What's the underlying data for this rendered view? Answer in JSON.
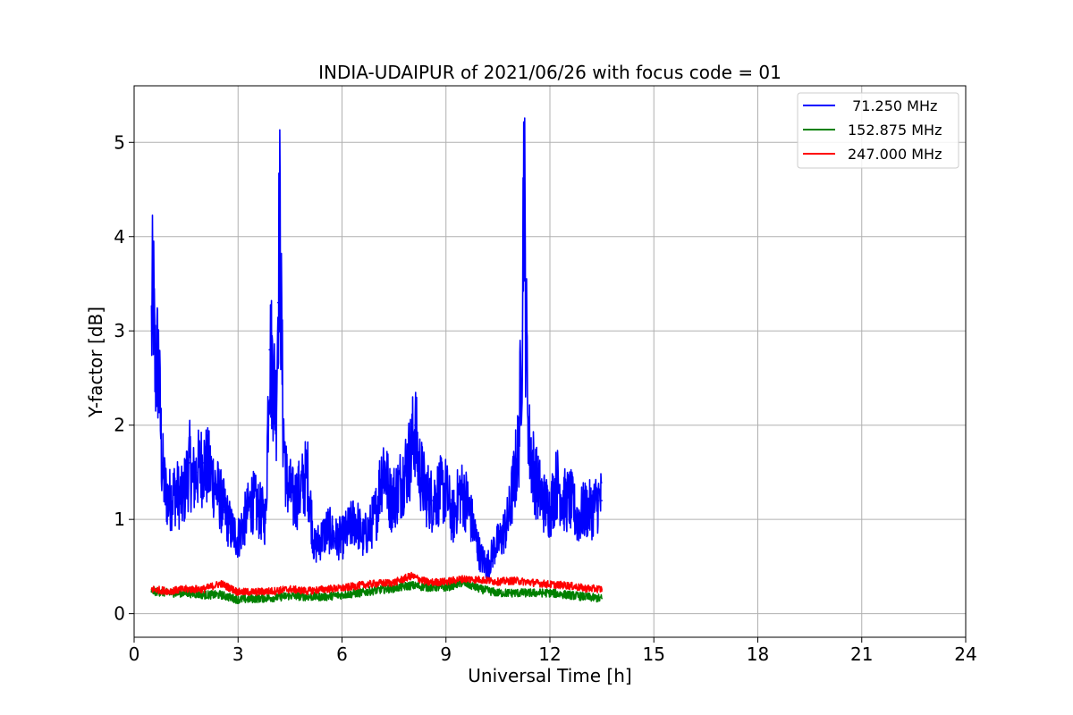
{
  "chart_data": {
    "type": "line",
    "title": "INDIA-UDAIPUR of 2021/06/26 with focus code = 01",
    "xlabel": "Universal Time [h]",
    "ylabel": "Y-factor [dB]",
    "xlim": [
      0,
      24
    ],
    "ylim": [
      -0.25,
      5.6
    ],
    "x_ticks": [
      0,
      3,
      6,
      9,
      12,
      15,
      18,
      21,
      24
    ],
    "x_tick_labels": [
      "0",
      "3",
      "6",
      "9",
      "12",
      "15",
      "18",
      "21",
      "24"
    ],
    "y_ticks": [
      0,
      1,
      2,
      3,
      4,
      5
    ],
    "y_tick_labels": [
      "0",
      "1",
      "2",
      "3",
      "4",
      "5"
    ],
    "grid": true,
    "legend_position": "top-right",
    "legend": [
      {
        "label": " 71.250 MHz",
        "color": "#0000ff"
      },
      {
        "label": "152.875 MHz",
        "color": "#008000"
      },
      {
        "label": "247.000 MHz",
        "color": "#ff0000"
      }
    ],
    "series": [
      {
        "name": " 71.250 MHz",
        "color": "#0000ff",
        "noise": 0.35,
        "x": [
          0.5,
          0.55,
          0.6,
          0.7,
          0.8,
          0.9,
          1.0,
          1.2,
          1.4,
          1.6,
          1.7,
          1.8,
          2.0,
          2.2,
          2.4,
          2.6,
          2.8,
          3.0,
          3.2,
          3.4,
          3.6,
          3.8,
          3.9,
          4.0,
          4.1,
          4.15,
          4.2,
          4.3,
          4.4,
          4.6,
          4.8,
          5.0,
          5.2,
          5.4,
          5.6,
          5.8,
          6.0,
          6.2,
          6.4,
          6.6,
          6.8,
          7.0,
          7.1,
          7.2,
          7.4,
          7.6,
          7.8,
          8.0,
          8.1,
          8.2,
          8.4,
          8.6,
          8.8,
          9.0,
          9.2,
          9.4,
          9.6,
          9.8,
          10.0,
          10.2,
          10.4,
          10.6,
          10.8,
          11.0,
          11.1,
          11.2,
          11.25,
          11.3,
          11.4,
          11.6,
          11.8,
          12.0,
          12.2,
          12.4,
          12.6,
          12.8,
          13.0,
          13.2,
          13.4,
          13.5
        ],
        "y": [
          3.0,
          3.5,
          2.6,
          2.7,
          1.6,
          1.3,
          1.2,
          1.3,
          1.2,
          1.6,
          1.4,
          1.5,
          1.6,
          1.5,
          1.3,
          1.1,
          0.9,
          0.8,
          1.0,
          1.2,
          1.1,
          1.0,
          2.8,
          2.6,
          2.2,
          3.3,
          4.2,
          2.0,
          1.4,
          1.2,
          1.3,
          1.5,
          0.7,
          0.8,
          0.9,
          0.8,
          0.8,
          0.9,
          1.0,
          0.8,
          0.9,
          1.1,
          1.4,
          1.6,
          1.2,
          1.3,
          1.5,
          1.7,
          2.0,
          1.6,
          1.3,
          1.2,
          1.3,
          1.3,
          1.0,
          1.3,
          1.2,
          0.9,
          0.6,
          0.5,
          0.7,
          0.8,
          1.0,
          1.5,
          1.8,
          3.0,
          5.0,
          3.2,
          1.8,
          1.4,
          1.2,
          1.1,
          1.4,
          1.2,
          1.2,
          1.0,
          1.1,
          1.1,
          1.2,
          1.2
        ]
      },
      {
        "name": "152.875 MHz",
        "color": "#008000",
        "noise": 0.09,
        "x": [
          0.5,
          1.0,
          1.5,
          2.0,
          2.5,
          3.0,
          3.5,
          4.0,
          4.5,
          5.0,
          5.5,
          6.0,
          6.5,
          7.0,
          7.5,
          8.0,
          8.5,
          9.0,
          9.5,
          10.0,
          10.5,
          11.0,
          11.5,
          12.0,
          12.5,
          13.0,
          13.5
        ],
        "y": [
          0.24,
          0.22,
          0.22,
          0.2,
          0.2,
          0.15,
          0.16,
          0.17,
          0.19,
          0.18,
          0.18,
          0.2,
          0.22,
          0.25,
          0.27,
          0.3,
          0.28,
          0.28,
          0.33,
          0.26,
          0.22,
          0.22,
          0.22,
          0.22,
          0.2,
          0.18,
          0.16
        ]
      },
      {
        "name": "247.000 MHz",
        "color": "#ff0000",
        "noise": 0.08,
        "x": [
          0.5,
          1.0,
          1.5,
          2.0,
          2.5,
          3.0,
          3.5,
          4.0,
          4.5,
          5.0,
          5.5,
          6.0,
          6.5,
          7.0,
          7.5,
          8.0,
          8.5,
          9.0,
          9.5,
          10.0,
          10.5,
          11.0,
          11.5,
          12.0,
          12.5,
          13.0,
          13.5
        ],
        "y": [
          0.26,
          0.24,
          0.26,
          0.26,
          0.32,
          0.23,
          0.23,
          0.24,
          0.26,
          0.24,
          0.26,
          0.27,
          0.3,
          0.32,
          0.33,
          0.4,
          0.33,
          0.34,
          0.37,
          0.36,
          0.34,
          0.35,
          0.33,
          0.31,
          0.3,
          0.27,
          0.26
        ]
      }
    ]
  }
}
